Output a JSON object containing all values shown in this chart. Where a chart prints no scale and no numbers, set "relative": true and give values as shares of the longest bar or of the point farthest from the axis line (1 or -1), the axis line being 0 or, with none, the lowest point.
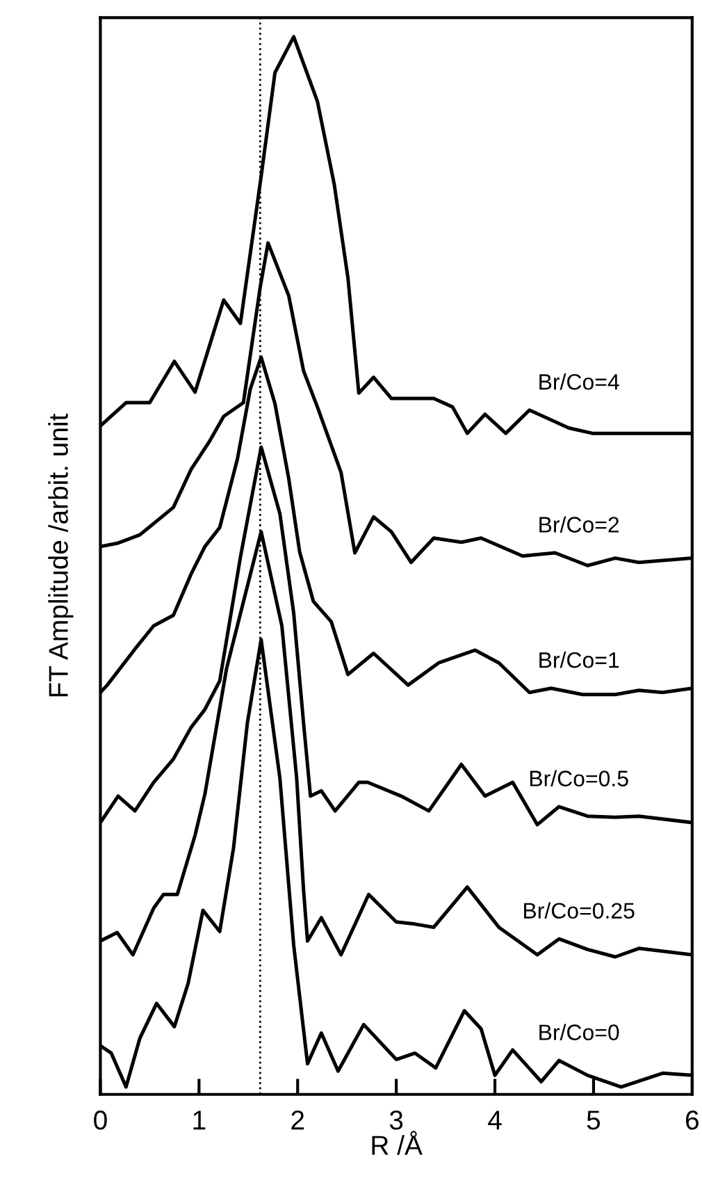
{
  "chart_data": {
    "type": "line",
    "relative": true,
    "xlabel": "R /Å",
    "ylabel": "FT Amplitude /arbit. unit",
    "xlim": [
      0,
      6
    ],
    "xticks": [
      0,
      1,
      2,
      3,
      4,
      5,
      6
    ],
    "grid": false,
    "legend": false,
    "ref_lines": [
      {
        "axis": "x",
        "value": 1.62,
        "line_style": "dotted",
        "color": "#000000"
      }
    ],
    "series": [
      {
        "name": "Br/Co=4",
        "color": "#000000",
        "x": [
          0,
          0.26,
          0.5,
          0.75,
          0.96,
          1.25,
          1.42,
          1.63,
          1.77,
          1.96,
          2.2,
          2.37,
          2.51,
          2.62,
          2.77,
          2.95,
          3.38,
          3.57,
          3.72,
          3.9,
          4.11,
          4.35,
          4.75,
          4.99,
          5.46,
          6
        ],
        "values": [
          0.632,
          0.654,
          0.654,
          0.693,
          0.664,
          0.751,
          0.729,
          0.868,
          0.966,
          1.0,
          0.939,
          0.861,
          0.772,
          0.663,
          0.678,
          0.658,
          0.658,
          0.65,
          0.625,
          0.643,
          0.625,
          0.647,
          0.63,
          0.625,
          0.625,
          0.625
        ]
      },
      {
        "name": "Br/Co=2",
        "color": "#000000",
        "x": [
          0,
          0.17,
          0.4,
          0.74,
          0.92,
          1.11,
          1.25,
          1.45,
          1.62,
          1.7,
          1.91,
          2.06,
          2.2,
          2.44,
          2.58,
          2.77,
          2.95,
          3.15,
          3.38,
          3.66,
          3.86,
          4.28,
          4.61,
          4.94,
          5.22,
          5.46,
          6
        ],
        "values": [
          0.518,
          0.521,
          0.529,
          0.555,
          0.591,
          0.618,
          0.641,
          0.654,
          0.763,
          0.805,
          0.755,
          0.684,
          0.65,
          0.588,
          0.512,
          0.546,
          0.532,
          0.503,
          0.526,
          0.522,
          0.526,
          0.509,
          0.512,
          0.5,
          0.507,
          0.503,
          0.507
        ]
      },
      {
        "name": "Br/Co=1",
        "color": "#000000",
        "x": [
          0,
          0.07,
          0.35,
          0.54,
          0.74,
          0.92,
          1.06,
          1.21,
          1.39,
          1.52,
          1.63,
          1.77,
          1.91,
          2.02,
          2.16,
          2.34,
          2.51,
          2.77,
          3.12,
          3.43,
          3.8,
          4.04,
          4.35,
          4.57,
          4.89,
          5.22,
          5.46,
          5.7,
          6
        ],
        "values": [
          0.38,
          0.387,
          0.421,
          0.443,
          0.453,
          0.492,
          0.518,
          0.536,
          0.601,
          0.667,
          0.697,
          0.653,
          0.582,
          0.513,
          0.466,
          0.447,
          0.397,
          0.417,
          0.387,
          0.408,
          0.42,
          0.408,
          0.38,
          0.384,
          0.378,
          0.378,
          0.382,
          0.38,
          0.384
        ]
      },
      {
        "name": "Br/Co=0.5",
        "color": "#000000",
        "x": [
          0,
          0.18,
          0.35,
          0.54,
          0.74,
          0.92,
          1.06,
          1.21,
          1.42,
          1.63,
          1.82,
          1.96,
          2.06,
          2.13,
          2.24,
          2.38,
          2.62,
          2.71,
          3.05,
          3.33,
          3.66,
          3.9,
          4.18,
          4.43,
          4.65,
          4.94,
          5.22,
          5.46,
          6
        ],
        "values": [
          0.257,
          0.282,
          0.268,
          0.295,
          0.317,
          0.347,
          0.364,
          0.391,
          0.508,
          0.612,
          0.549,
          0.455,
          0.351,
          0.282,
          0.287,
          0.268,
          0.295,
          0.295,
          0.282,
          0.268,
          0.312,
          0.282,
          0.295,
          0.255,
          0.272,
          0.263,
          0.262,
          0.263,
          0.257
        ]
      },
      {
        "name": "Br/Co=0.25",
        "color": "#000000",
        "x": [
          0,
          0.17,
          0.33,
          0.54,
          0.64,
          0.78,
          0.96,
          1.06,
          1.28,
          1.63,
          1.84,
          1.99,
          2.06,
          2.1,
          2.24,
          2.44,
          2.72,
          3.0,
          3.19,
          3.38,
          3.72,
          4.04,
          4.43,
          4.65,
          4.94,
          5.22,
          5.46,
          6
        ],
        "values": [
          0.145,
          0.153,
          0.132,
          0.176,
          0.189,
          0.189,
          0.245,
          0.284,
          0.403,
          0.532,
          0.443,
          0.299,
          0.193,
          0.145,
          0.167,
          0.132,
          0.189,
          0.163,
          0.161,
          0.158,
          0.196,
          0.158,
          0.132,
          0.147,
          0.137,
          0.13,
          0.138,
          0.132
        ]
      },
      {
        "name": "Br/Co=0",
        "color": "#000000",
        "x": [
          0,
          0.11,
          0.26,
          0.4,
          0.57,
          0.75,
          0.89,
          1.04,
          1.21,
          1.35,
          1.49,
          1.63,
          1.82,
          1.96,
          2.1,
          2.24,
          2.41,
          2.67,
          3.0,
          3.19,
          3.4,
          3.69,
          3.86,
          4.0,
          4.18,
          4.47,
          4.65,
          4.94,
          5.28,
          5.7,
          6
        ],
        "values": [
          0.046,
          0.039,
          0.007,
          0.053,
          0.086,
          0.064,
          0.105,
          0.174,
          0.154,
          0.233,
          0.351,
          0.43,
          0.299,
          0.141,
          0.029,
          0.058,
          0.022,
          0.066,
          0.033,
          0.039,
          0.025,
          0.079,
          0.062,
          0.018,
          0.042,
          0.012,
          0.032,
          0.018,
          0.007,
          0.02,
          0.018
        ]
      }
    ]
  }
}
